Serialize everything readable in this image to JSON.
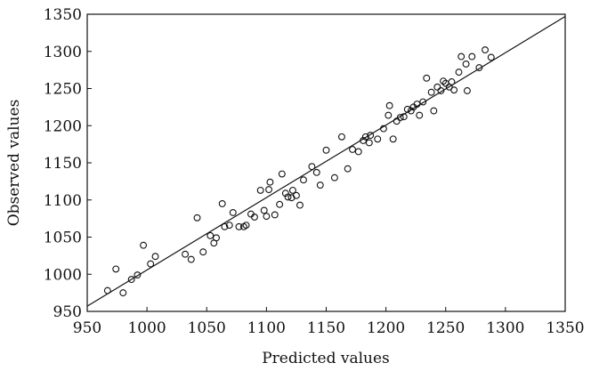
{
  "chart_data": {
    "type": "scatter",
    "title": "",
    "xlabel": "Predicted values",
    "ylabel": "Observed values",
    "xlim": [
      950,
      1350
    ],
    "ylim": [
      950,
      1350
    ],
    "x_ticks": [
      "950",
      "1000",
      "1050",
      "1100",
      "1150",
      "1200",
      "1250",
      "1300",
      "1350"
    ],
    "y_ticks": [
      "950",
      "1000",
      "1050",
      "1100",
      "1150",
      "1200",
      "1250",
      "1300",
      "1350"
    ],
    "grid": false,
    "legend": "none",
    "marker": "open-circle",
    "fit_line": {
      "x": [
        950,
        1350
      ],
      "y": [
        957,
        1347
      ]
    },
    "colors": {
      "stroke": "#111111",
      "background": "#ffffff"
    },
    "series": [
      {
        "points": [
          [
            967,
            978
          ],
          [
            974,
            1007
          ],
          [
            980,
            975
          ],
          [
            987,
            993
          ],
          [
            992,
            999
          ],
          [
            997,
            1039
          ],
          [
            1003,
            1014
          ],
          [
            1007,
            1024
          ],
          [
            1032,
            1027
          ],
          [
            1037,
            1020
          ],
          [
            1042,
            1076
          ],
          [
            1047,
            1030
          ],
          [
            1053,
            1052
          ],
          [
            1056,
            1042
          ],
          [
            1058,
            1049
          ],
          [
            1063,
            1095
          ],
          [
            1065,
            1064
          ],
          [
            1069,
            1066
          ],
          [
            1072,
            1083
          ],
          [
            1077,
            1064
          ],
          [
            1081,
            1064
          ],
          [
            1083,
            1066
          ],
          [
            1087,
            1081
          ],
          [
            1090,
            1077
          ],
          [
            1095,
            1113
          ],
          [
            1098,
            1086
          ],
          [
            1100,
            1078
          ],
          [
            1102,
            1114
          ],
          [
            1103,
            1124
          ],
          [
            1107,
            1080
          ],
          [
            1111,
            1094
          ],
          [
            1113,
            1135
          ],
          [
            1116,
            1109
          ],
          [
            1118,
            1104
          ],
          [
            1121,
            1103
          ],
          [
            1122,
            1113
          ],
          [
            1125,
            1106
          ],
          [
            1128,
            1093
          ],
          [
            1131,
            1127
          ],
          [
            1138,
            1145
          ],
          [
            1142,
            1137
          ],
          [
            1145,
            1120
          ],
          [
            1150,
            1167
          ],
          [
            1157,
            1130
          ],
          [
            1163,
            1185
          ],
          [
            1168,
            1142
          ],
          [
            1172,
            1168
          ],
          [
            1177,
            1165
          ],
          [
            1181,
            1180
          ],
          [
            1183,
            1185
          ],
          [
            1186,
            1177
          ],
          [
            1187,
            1187
          ],
          [
            1193,
            1182
          ],
          [
            1198,
            1196
          ],
          [
            1202,
            1214
          ],
          [
            1203,
            1227
          ],
          [
            1206,
            1182
          ],
          [
            1209,
            1206
          ],
          [
            1212,
            1211
          ],
          [
            1215,
            1212
          ],
          [
            1218,
            1222
          ],
          [
            1221,
            1220
          ],
          [
            1223,
            1225
          ],
          [
            1226,
            1229
          ],
          [
            1228,
            1214
          ],
          [
            1231,
            1232
          ],
          [
            1234,
            1264
          ],
          [
            1238,
            1245
          ],
          [
            1240,
            1220
          ],
          [
            1243,
            1252
          ],
          [
            1246,
            1247
          ],
          [
            1248,
            1260
          ],
          [
            1250,
            1257
          ],
          [
            1253,
            1252
          ],
          [
            1255,
            1259
          ],
          [
            1257,
            1248
          ],
          [
            1261,
            1272
          ],
          [
            1263,
            1293
          ],
          [
            1267,
            1283
          ],
          [
            1268,
            1247
          ],
          [
            1272,
            1293
          ],
          [
            1278,
            1278
          ],
          [
            1283,
            1302
          ],
          [
            1288,
            1292
          ]
        ]
      }
    ]
  }
}
